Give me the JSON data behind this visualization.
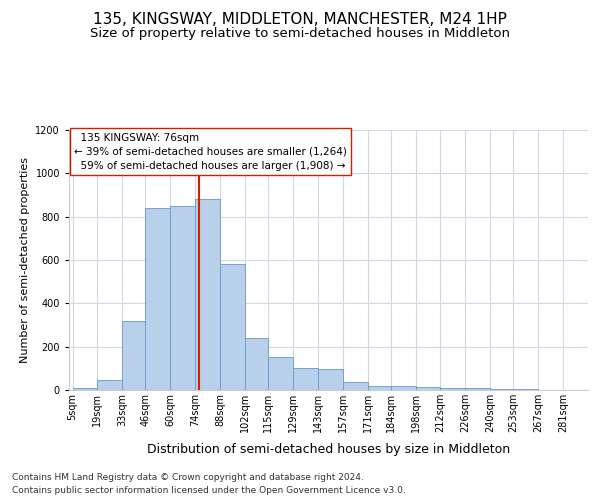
{
  "title": "135, KINGSWAY, MIDDLETON, MANCHESTER, M24 1HP",
  "subtitle": "Size of property relative to semi-detached houses in Middleton",
  "xlabel": "Distribution of semi-detached houses by size in Middleton",
  "ylabel": "Number of semi-detached properties",
  "footer_line1": "Contains HM Land Registry data © Crown copyright and database right 2024.",
  "footer_line2": "Contains public sector information licensed under the Open Government Licence v3.0.",
  "annotation_title": "135 KINGSWAY: 76sqm",
  "annotation_line1": "← 39% of semi-detached houses are smaller (1,264)",
  "annotation_line2": "59% of semi-detached houses are larger (1,908) →",
  "property_size": 76,
  "bar_left_edges": [
    5,
    19,
    33,
    46,
    60,
    74,
    88,
    102,
    115,
    129,
    143,
    157,
    171,
    184,
    198,
    212,
    226,
    240,
    253,
    267
  ],
  "bar_right_edges": [
    19,
    33,
    46,
    60,
    74,
    88,
    102,
    115,
    129,
    143,
    157,
    171,
    184,
    198,
    212,
    226,
    240,
    253,
    267,
    281
  ],
  "bar_heights": [
    8,
    47,
    318,
    840,
    850,
    880,
    580,
    238,
    152,
    100,
    95,
    35,
    20,
    20,
    12,
    10,
    8,
    5,
    3,
    2
  ],
  "xtick_labels": [
    "5sqm",
    "19sqm",
    "33sqm",
    "46sqm",
    "60sqm",
    "74sqm",
    "88sqm",
    "102sqm",
    "115sqm",
    "129sqm",
    "143sqm",
    "157sqm",
    "171sqm",
    "184sqm",
    "198sqm",
    "212sqm",
    "226sqm",
    "240sqm",
    "253sqm",
    "267sqm",
    "281sqm"
  ],
  "xtick_positions": [
    5,
    19,
    33,
    46,
    60,
    74,
    88,
    102,
    115,
    129,
    143,
    157,
    171,
    184,
    198,
    212,
    226,
    240,
    253,
    267,
    281
  ],
  "bar_color": "#b8d0ea",
  "bar_edge_color": "#6699cc",
  "redline_color": "#cc2200",
  "redbox_color": "#cc2200",
  "ylim": [
    0,
    1200
  ],
  "xlim": [
    3,
    295
  ],
  "yticks": [
    0,
    200,
    400,
    600,
    800,
    1000,
    1200
  ],
  "bg_color": "#ffffff",
  "grid_color": "#d0d8e8",
  "title_fontsize": 11,
  "subtitle_fontsize": 9.5,
  "ylabel_fontsize": 8,
  "xlabel_fontsize": 9,
  "tick_fontsize": 7,
  "annotation_fontsize": 7.5,
  "footer_fontsize": 6.5
}
